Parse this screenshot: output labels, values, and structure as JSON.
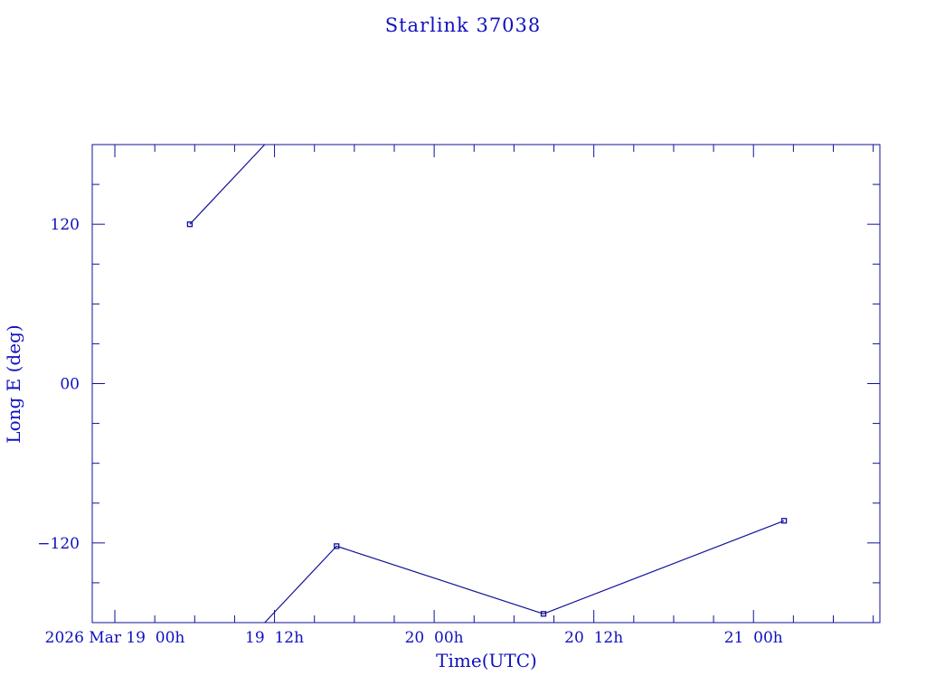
{
  "chart_data": {
    "type": "line",
    "title": "Starlink 37038",
    "xlabel": "Time(UTC)",
    "ylabel": "Long E (deg)",
    "x_ticks": [
      {
        "time": "2026-03-19T00:00",
        "label": "2026 Mar 19  00h"
      },
      {
        "time": "2026-03-19T12:00",
        "label": "19  12h"
      },
      {
        "time": "2026-03-20T00:00",
        "label": "20  00h"
      },
      {
        "time": "2026-03-20T12:00",
        "label": "20  12h"
      },
      {
        "time": "2026-03-21T00:00",
        "label": "21  00h"
      }
    ],
    "xlim": [
      "2026-03-18T22:18",
      "2026-03-21T09:30"
    ],
    "x_minor_tick_hours": 3,
    "y_ticks": [
      {
        "value": 120,
        "label": "120"
      },
      {
        "value": 0,
        "label": "00"
      },
      {
        "value": -120,
        "label": "−120"
      }
    ],
    "y_minor_tick_deg": 30,
    "ylim": [
      -180,
      180
    ],
    "longitude_wraps": true,
    "grid": false,
    "color": "#10109a",
    "series": [
      {
        "points": [
          {
            "time": "2026-03-19T05:38",
            "value": 120
          },
          {
            "time": "2026-03-19T16:40",
            "value": -122.4
          },
          {
            "time": "2026-03-20T08:13",
            "value": -173.4
          },
          {
            "time": "2026-03-21T02:18",
            "value": -103.3
          }
        ]
      }
    ]
  }
}
